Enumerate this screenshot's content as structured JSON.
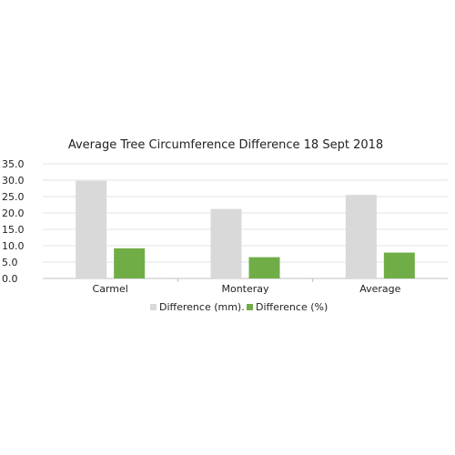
{
  "chart_data": {
    "type": "bar",
    "title": "Average Tree Circumference Difference 18 Sept 2018",
    "xlabel": "",
    "ylabel": "",
    "categories": [
      "Carmel",
      "Monteray",
      "Average"
    ],
    "series": [
      {
        "name": "Difference (mm).",
        "values": [
          29.8,
          21.2,
          25.5
        ],
        "color": "#d9d9d9"
      },
      {
        "name": "Difference (%)",
        "values": [
          9.2,
          6.5,
          7.9
        ],
        "color": "#70ad47"
      }
    ],
    "ylim": [
      0,
      35
    ],
    "yticks": [
      "0.0",
      "5.0",
      "10.0",
      "15.0",
      "20.0",
      "25.0",
      "30.0",
      "35.0"
    ],
    "grid": true,
    "legend": "bottom"
  }
}
